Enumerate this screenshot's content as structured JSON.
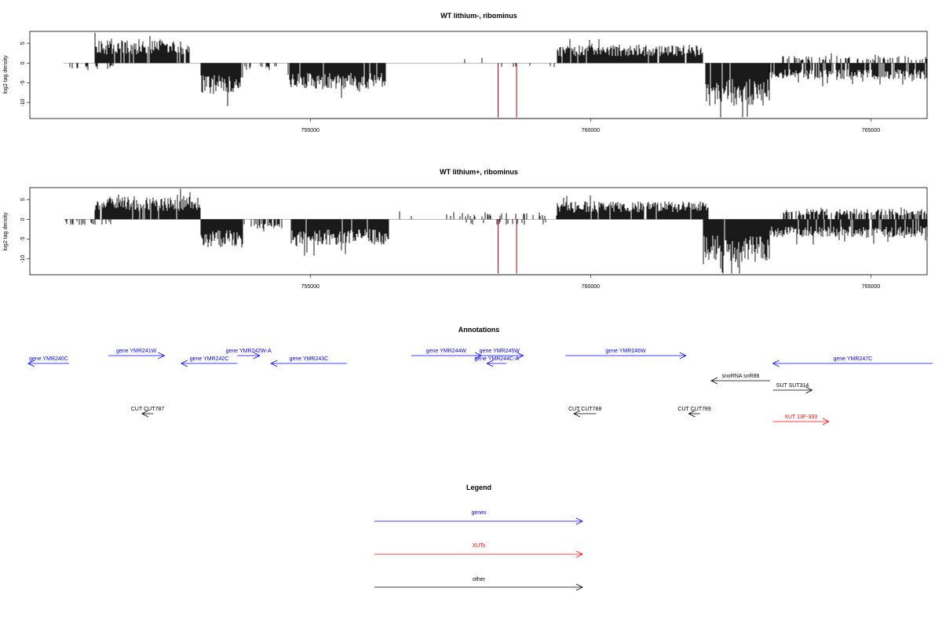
{
  "chart_data": [
    {
      "type": "bar",
      "title": "WT lithium-, ribominus",
      "ylabel": "log2 tag density",
      "xlim": [
        750000,
        766000
      ],
      "ylim": [
        -14,
        8
      ],
      "yticks": [
        5,
        0,
        -5,
        -10
      ],
      "xticks": [
        755000,
        760000,
        765000
      ],
      "x_tick_labels": [
        "755000",
        "760000",
        "765000"
      ],
      "colors": {
        "bars": "#000000",
        "highlight": "#cc0000"
      },
      "segments": [
        {
          "from": 750600,
          "to": 751500,
          "sign": -1,
          "level": 1.2,
          "density": 0.2
        },
        {
          "from": 751150,
          "to": 752850,
          "sign": 1,
          "level": 4.8,
          "density": 0.95
        },
        {
          "from": 753050,
          "to": 753800,
          "sign": -1,
          "level": 6.5,
          "density": 0.95
        },
        {
          "from": 753800,
          "to": 754400,
          "sign": -1,
          "level": 1.5,
          "density": 0.3
        },
        {
          "from": 754600,
          "to": 756350,
          "sign": -1,
          "level": 5.5,
          "density": 0.95
        },
        {
          "from": 757400,
          "to": 758400,
          "sign": 1,
          "level": 2.0,
          "density": 0.06
        },
        {
          "from": 758400,
          "to": 759400,
          "sign": -1,
          "level": 1.0,
          "density": 0.08
        },
        {
          "from": 759400,
          "to": 762000,
          "sign": 1,
          "level": 3.8,
          "density": 0.95
        },
        {
          "from": 762050,
          "to": 763200,
          "sign": -1,
          "level": 9.0,
          "density": 0.98
        },
        {
          "from": 763150,
          "to": 766000,
          "sign": -1,
          "level": 3.5,
          "density": 0.8
        },
        {
          "from": 763400,
          "to": 766000,
          "sign": 1,
          "level": 1.5,
          "density": 0.3
        }
      ],
      "highlights": [
        {
          "x": 758350,
          "value": -14
        },
        {
          "x": 758680,
          "value": -14
        }
      ]
    },
    {
      "type": "bar",
      "title": "WT lithium+, ribominus",
      "ylabel": "log2 tag density",
      "xlim": [
        750000,
        766000
      ],
      "ylim": [
        -14,
        8
      ],
      "yticks": [
        5,
        0,
        -5,
        -10
      ],
      "xticks": [
        755000,
        760000,
        765000
      ],
      "x_tick_labels": [
        "755000",
        "760000",
        "765000"
      ],
      "colors": {
        "bars": "#000000",
        "highlight": "#cc0000"
      },
      "segments": [
        {
          "from": 750600,
          "to": 751500,
          "sign": -1,
          "level": 1.2,
          "density": 0.25
        },
        {
          "from": 751150,
          "to": 753050,
          "sign": 1,
          "level": 4.8,
          "density": 0.95
        },
        {
          "from": 753050,
          "to": 753800,
          "sign": -1,
          "level": 6.0,
          "density": 0.95
        },
        {
          "from": 753800,
          "to": 754500,
          "sign": -1,
          "level": 2.0,
          "density": 0.5
        },
        {
          "from": 754650,
          "to": 756400,
          "sign": -1,
          "level": 5.5,
          "density": 0.95
        },
        {
          "from": 756200,
          "to": 757400,
          "sign": 1,
          "level": 1.2,
          "density": 0.05
        },
        {
          "from": 757400,
          "to": 759500,
          "sign": 1,
          "level": 1.5,
          "density": 0.15
        },
        {
          "from": 757400,
          "to": 759500,
          "sign": -1,
          "level": 1.2,
          "density": 0.15
        },
        {
          "from": 759400,
          "to": 762100,
          "sign": 1,
          "level": 3.8,
          "density": 0.95
        },
        {
          "from": 762000,
          "to": 763200,
          "sign": -1,
          "level": 9.0,
          "density": 0.98
        },
        {
          "from": 763200,
          "to": 766000,
          "sign": -1,
          "level": 3.8,
          "density": 0.9
        },
        {
          "from": 763400,
          "to": 766000,
          "sign": 1,
          "level": 2.2,
          "density": 0.6
        }
      ],
      "highlights": [
        {
          "x": 758350,
          "value": -14
        },
        {
          "x": 758680,
          "value": -14
        }
      ]
    }
  ],
  "annotations": {
    "title": "Annotations",
    "colors": {
      "genes": "#0000ff",
      "XUTs": "#ff0000",
      "other": "#000000"
    },
    "features": [
      {
        "label": "gene YMR240C",
        "start": 749970,
        "end": 750700,
        "strand": "-",
        "class": "genes",
        "row": 1
      },
      {
        "label": "gene YMR241W",
        "start": 751400,
        "end": 752400,
        "strand": "+",
        "class": "genes",
        "row": 0
      },
      {
        "label": "gene YMR242C",
        "start": 752700,
        "end": 753700,
        "strand": "-",
        "class": "genes",
        "row": 1
      },
      {
        "label": "gene YMR242W-A",
        "start": 753700,
        "end": 754100,
        "strand": "+",
        "class": "genes",
        "row": 0
      },
      {
        "label": "gene YMR243C",
        "start": 754300,
        "end": 755650,
        "strand": "-",
        "class": "genes",
        "row": 1
      },
      {
        "label": "gene YMR244W",
        "start": 756800,
        "end": 758050,
        "strand": "+",
        "class": "genes",
        "row": 0
      },
      {
        "label": "gene YMR245W",
        "start": 757950,
        "end": 758800,
        "strand": "+",
        "class": "genes",
        "row": 0
      },
      {
        "label": "gene YMR244C-A",
        "start": 758150,
        "end": 758500,
        "strand": "-",
        "class": "genes",
        "row": 1
      },
      {
        "label": "gene YMR246W",
        "start": 759550,
        "end": 761700,
        "strand": "+",
        "class": "genes",
        "row": 0
      },
      {
        "label": "gene YMR247C",
        "start": 763250,
        "end": 766100,
        "strand": "-",
        "class": "genes",
        "row": 1
      },
      {
        "label": "snoRNA snR86",
        "start": 762150,
        "end": 763200,
        "strand": "-",
        "class": "other",
        "row": 2
      },
      {
        "label": "SUT SUT314",
        "start": 763250,
        "end": 763950,
        "strand": "+",
        "class": "other",
        "row": 3
      },
      {
        "label": "CUT CUT787",
        "start": 752000,
        "end": 752200,
        "strand": "-",
        "class": "other",
        "row": 4
      },
      {
        "label": "CUT CUT788",
        "start": 759700,
        "end": 760100,
        "strand": "-",
        "class": "other",
        "row": 4
      },
      {
        "label": "CUT CUT789",
        "start": 761750,
        "end": 761950,
        "strand": "-",
        "class": "other",
        "row": 4
      },
      {
        "label": "XUT 13F-333",
        "start": 763250,
        "end": 764250,
        "strand": "+",
        "class": "XUTs",
        "row": 5
      }
    ]
  },
  "legend": {
    "title": "Legend",
    "items": [
      {
        "label": "genes",
        "color": "#0000ff"
      },
      {
        "label": "XUTs",
        "color": "#ff0000"
      },
      {
        "label": "other",
        "color": "#000000"
      }
    ]
  }
}
